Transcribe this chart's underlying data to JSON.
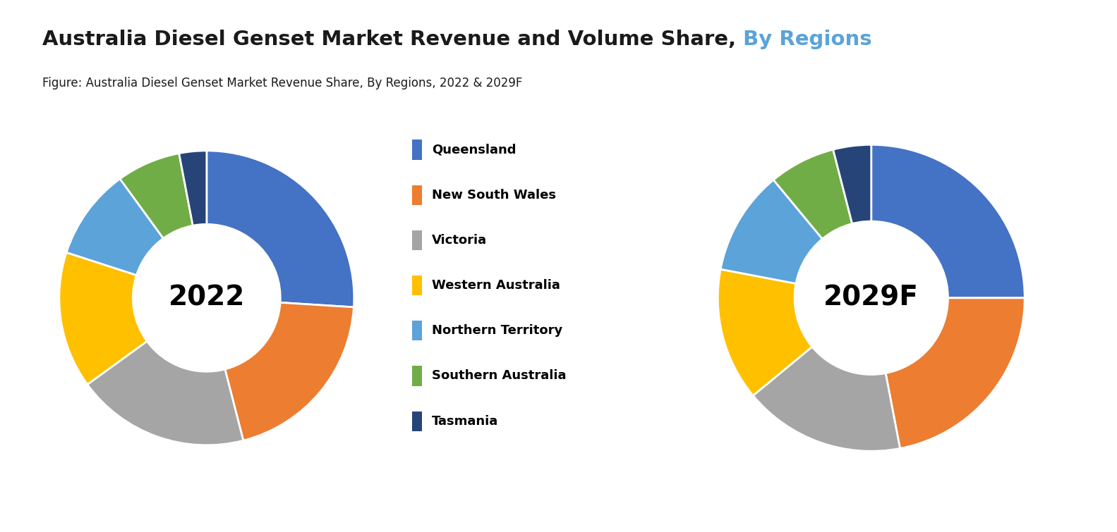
{
  "title_black": "Australia Diesel Genset Market Revenue and Volume Share,",
  "title_blue": " By Regions",
  "subtitle": "Figure: Australia Diesel Genset Market Revenue Share, By Regions, 2022 & 2029F",
  "categories": [
    "Queensland",
    "New South Wales",
    "Victoria",
    "Western Australia",
    "Northern Territory",
    "Southern Australia",
    "Tasmania"
  ],
  "colors": [
    "#4472C4",
    "#ED7D31",
    "#A5A5A5",
    "#FFC000",
    "#5BA3D9",
    "#70AD47",
    "#264478"
  ],
  "values_2022": [
    26,
    20,
    19,
    15,
    10,
    7,
    3
  ],
  "values_2029f": [
    25,
    22,
    17,
    14,
    11,
    7,
    4
  ],
  "label_2022": "2022",
  "label_2029f": "2029F",
  "title_color_black": "#1a1a1a",
  "title_color_blue": "#5BA3D9",
  "bg_color": "#ffffff"
}
